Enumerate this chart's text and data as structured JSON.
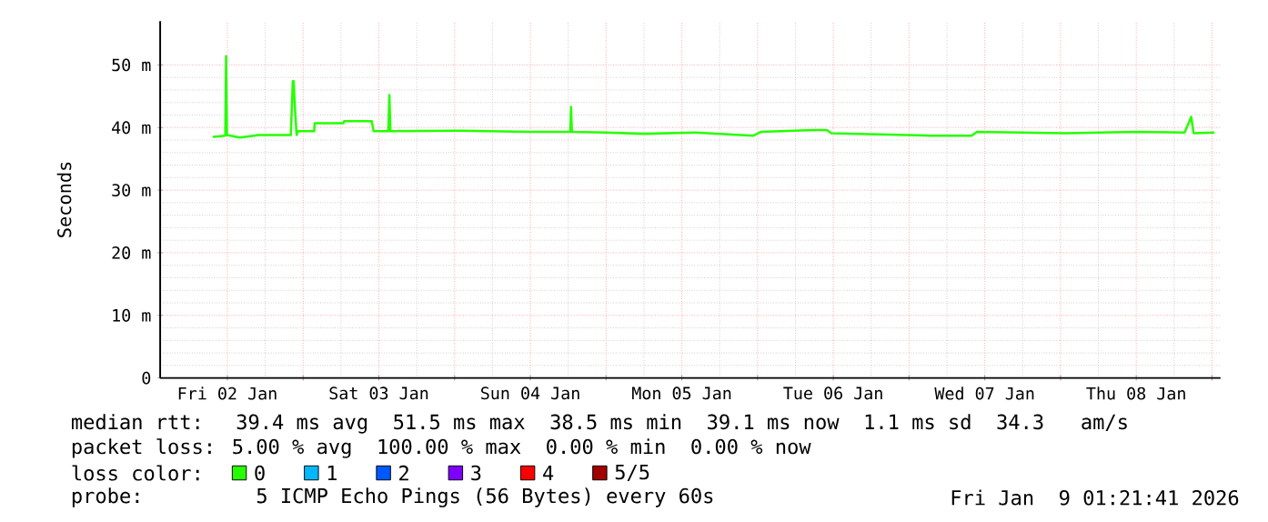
{
  "chart_data": {
    "type": "line",
    "ylabel": "Seconds",
    "legend_title": "loss color:",
    "grid": true,
    "legend": "bottom",
    "marker": "none",
    "line_style": "solid",
    "xlim": [
      "2026-01-02T01:21",
      "2026-01-09T01:21"
    ],
    "xticks": [
      {
        "value": "2026-01-02T12:00",
        "label": "Fri 02 Jan"
      },
      {
        "value": "2026-01-03T00:00",
        "label": null
      },
      {
        "value": "2026-01-03T12:00",
        "label": "Sat 03 Jan"
      },
      {
        "value": "2026-01-04T00:00",
        "label": null
      },
      {
        "value": "2026-01-04T12:00",
        "label": "Sun 04 Jan"
      },
      {
        "value": "2026-01-05T00:00",
        "label": null
      },
      {
        "value": "2026-01-05T12:00",
        "label": "Mon 05 Jan"
      },
      {
        "value": "2026-01-06T00:00",
        "label": null
      },
      {
        "value": "2026-01-06T12:00",
        "label": "Tue 06 Jan"
      },
      {
        "value": "2026-01-07T00:00",
        "label": null
      },
      {
        "value": "2026-01-07T12:00",
        "label": "Wed 07 Jan"
      },
      {
        "value": "2026-01-08T00:00",
        "label": null
      },
      {
        "value": "2026-01-08T12:00",
        "label": "Thu 08 Jan"
      },
      {
        "value": "2026-01-09T00:00",
        "label": null
      }
    ],
    "ylim": [
      0,
      57
    ],
    "yticks": [
      0,
      {
        "value": 10,
        "label": "10 m"
      },
      {
        "value": 20,
        "label": "20 m"
      },
      {
        "value": 30,
        "label": "30 m"
      },
      {
        "value": 40,
        "label": "40 m"
      },
      {
        "value": 50,
        "label": "50 m"
      }
    ],
    "series": [
      {
        "name": "0",
        "color": "#26ff00",
        "x": [
          "2026-01-02T09:42",
          "2026-01-02T11:40",
          "2026-01-02T11:48",
          "2026-01-02T11:56",
          "2026-01-02T14:00",
          "2026-01-02T17:00",
          "2026-01-02T22:03",
          "2026-01-02T22:22",
          "2026-01-02T22:30",
          "2026-01-02T22:40",
          "2026-01-02T22:58",
          "2026-01-02T23:10",
          "2026-01-03T01:45",
          "2026-01-03T01:50",
          "2026-01-03T06:24",
          "2026-01-03T06:30",
          "2026-01-03T10:52",
          "2026-01-03T11:10",
          "2026-01-03T13:30",
          "2026-01-03T13:40",
          "2026-01-03T13:50",
          "2026-01-04T00:00",
          "2026-01-04T12:00",
          "2026-01-04T18:20",
          "2026-01-04T18:27",
          "2026-01-04T18:35",
          "2026-01-05T00:00",
          "2026-01-05T06:00",
          "2026-01-05T14:10",
          "2026-01-05T23:20",
          "2026-01-06T00:30",
          "2026-01-06T08:50",
          "2026-01-06T11:00",
          "2026-01-06T11:40",
          "2026-01-07T03:15",
          "2026-01-07T09:55",
          "2026-01-07T10:45",
          "2026-01-08T00:45",
          "2026-01-08T11:50",
          "2026-01-08T19:40",
          "2026-01-08T20:42",
          "2026-01-08T21:05",
          "2026-01-09T00:24"
        ],
        "values": [
          38.5,
          38.7,
          51.4,
          38.8,
          38.4,
          38.8,
          38.8,
          47.4,
          47.4,
          43.8,
          38.8,
          39.4,
          39.4,
          40.7,
          40.7,
          41.0,
          41.0,
          39.4,
          39.4,
          45.2,
          39.4,
          39.5,
          39.3,
          39.3,
          43.3,
          39.3,
          39.2,
          39.0,
          39.2,
          38.7,
          39.3,
          39.6,
          39.6,
          39.1,
          38.7,
          38.7,
          39.3,
          39.1,
          39.3,
          39.2,
          41.7,
          39.1,
          39.2
        ]
      },
      {
        "name": "1",
        "color": "#00b8ff"
      },
      {
        "name": "2",
        "color": "#0059ff"
      },
      {
        "name": "3",
        "color": "#7e00ff"
      },
      {
        "name": "4",
        "color": "#ff0000"
      },
      {
        "name": "5/5",
        "color": "#a10000"
      }
    ],
    "annotations": [
      "median rtt:  39.4 ms avg  51.5 ms max  38.5 ms min  39.1 ms now  1.1 ms sd  34.3   am/s",
      "packet loss: 5.00 % avg  100.00 % max  0.00 % min  0.00 % now",
      "probe:       5 ICMP Echo Pings (56 Bytes) every 60s",
      "Fri Jan  9 01:21:41 2026"
    ]
  }
}
